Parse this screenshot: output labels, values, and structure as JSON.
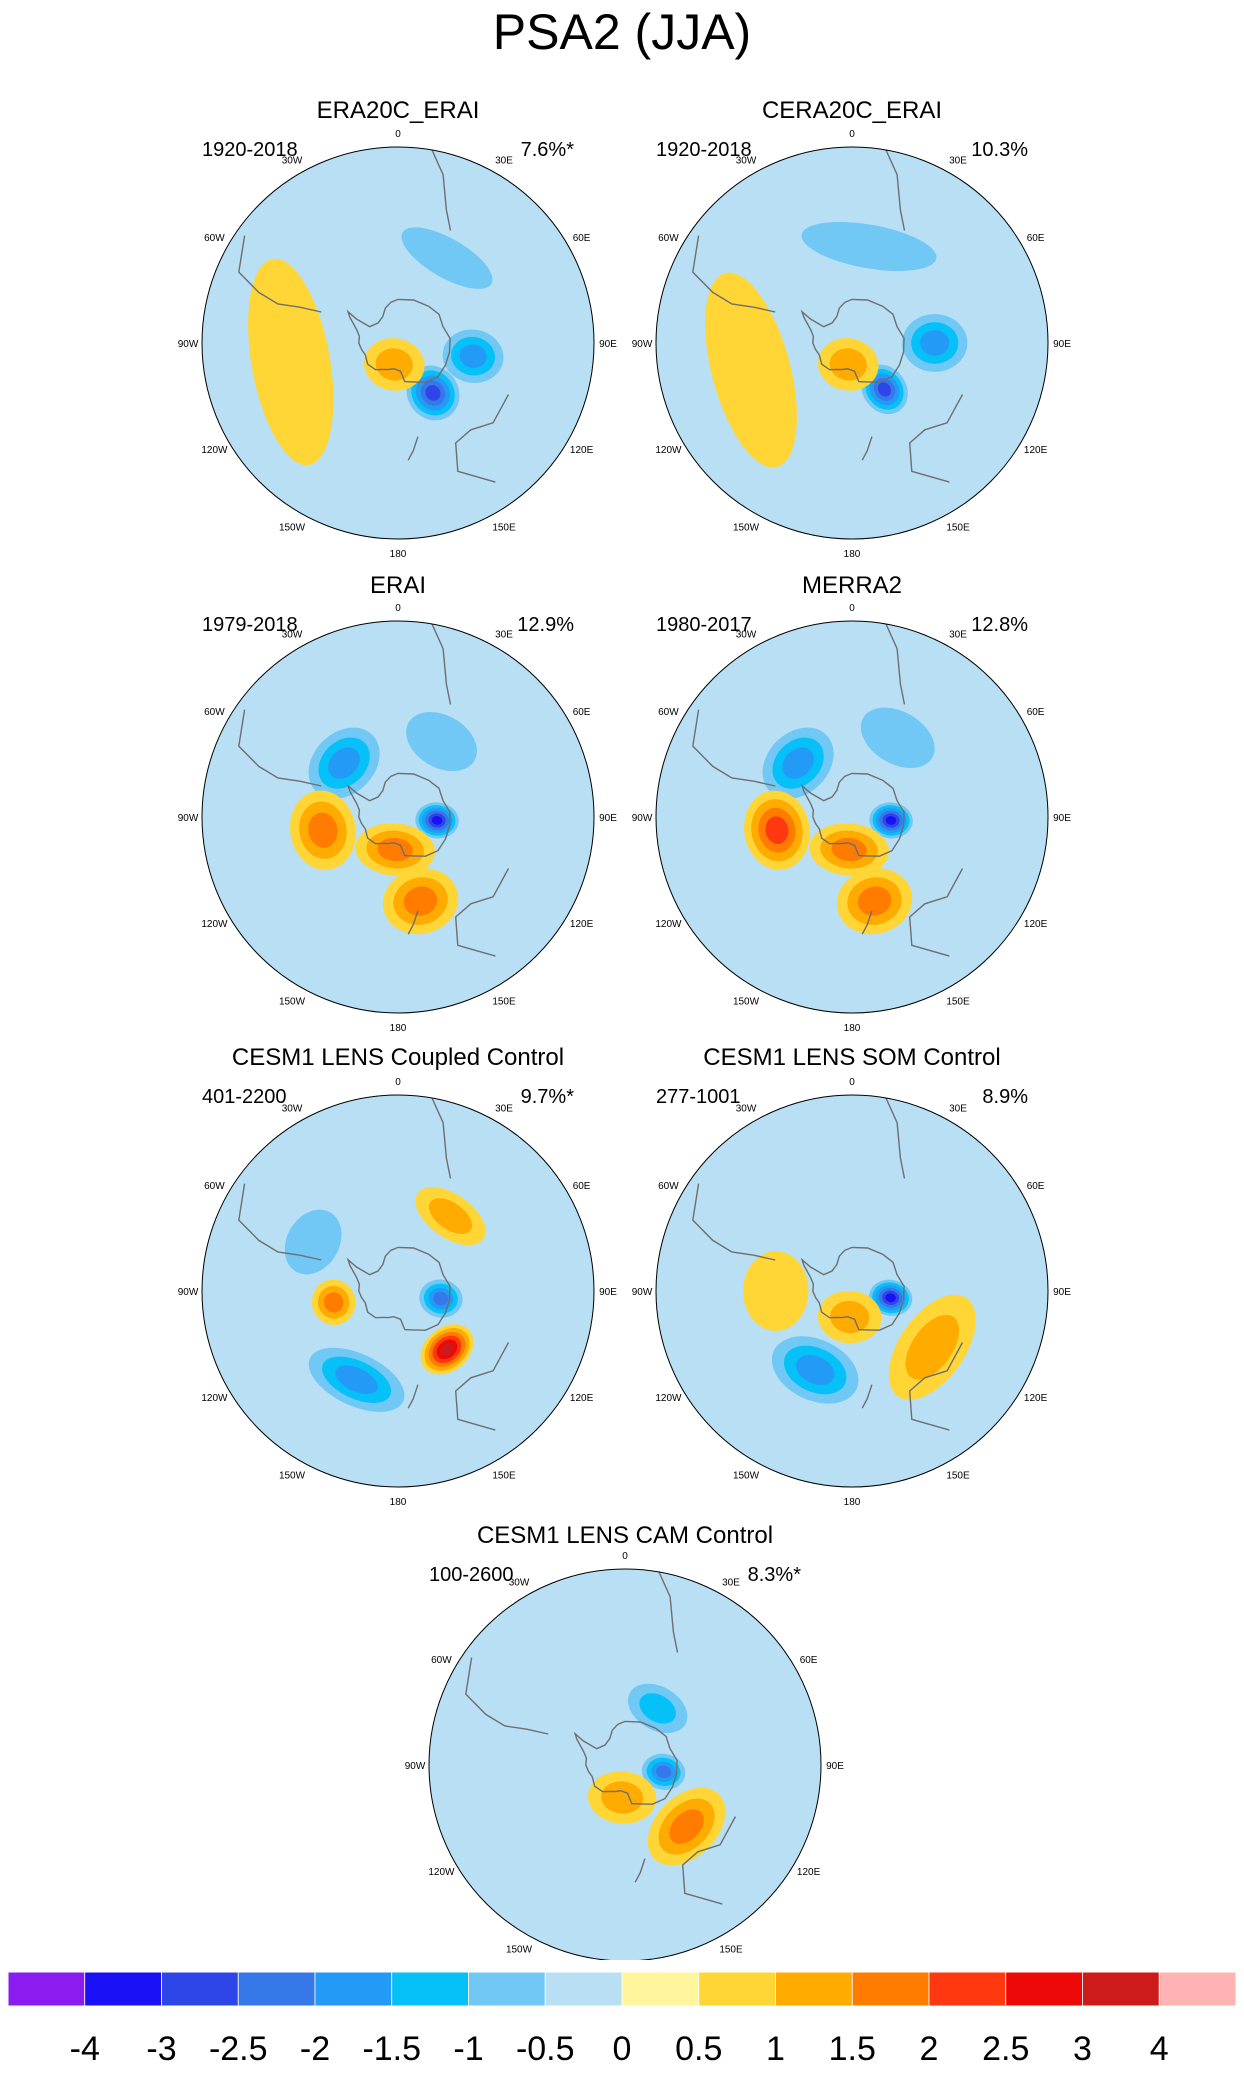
{
  "figure": {
    "title": "PSA2 (JJA)"
  },
  "longitude_labels": [
    "0",
    "30E",
    "60E",
    "90E",
    "120E",
    "150E",
    "180",
    "150W",
    "120W",
    "90W",
    "60W",
    "30W"
  ],
  "colors": {
    "scale": [
      "#8a1cf0",
      "#1a10f5",
      "#2e46e8",
      "#3677e9",
      "#239bf6",
      "#05c1f7",
      "#72c8f4",
      "#b8dff4",
      "#fff59c",
      "#ffd635",
      "#ffab00",
      "#ff7c00",
      "#ff3810",
      "#ee0909",
      "#cd1a1a",
      "#ffb3b3"
    ],
    "coast": "#6e6e6e"
  },
  "chart_data": [
    {
      "type": "heatmap",
      "title": "ERA20C_ERAI",
      "period": "1920-2018",
      "variance": "7.6%*",
      "anomalies": [
        {
          "lon": 145,
          "lat": -62,
          "value": -2.5,
          "extent_lon": 24,
          "extent_lat": 13
        },
        {
          "lon": 100,
          "lat": -55,
          "value": -1.5,
          "extent_lon": 20,
          "extent_lat": 14
        },
        {
          "lon": 30,
          "lat": -45,
          "value": -0.5,
          "extent_lon": 30,
          "extent_lat": 9
        },
        {
          "lon": -170,
          "lat": -80,
          "value": 1.0,
          "extent_lon": 80,
          "extent_lat": 12
        },
        {
          "lon": -100,
          "lat": -40,
          "value": 0.5,
          "extent_lon": 55,
          "extent_lat": 18
        }
      ]
    },
    {
      "type": "heatmap",
      "title": "CERA20C_ERAI",
      "period": "1920-2018",
      "variance": "10.3%",
      "anomalies": [
        {
          "lon": 145,
          "lat": -64,
          "value": -2.5,
          "extent_lon": 22,
          "extent_lat": 12
        },
        {
          "lon": 90,
          "lat": -52,
          "value": -1.5,
          "extent_lon": 20,
          "extent_lat": 15
        },
        {
          "lon": 10,
          "lat": -45,
          "value": -0.5,
          "extent_lon": 40,
          "extent_lat": 10
        },
        {
          "lon": -170,
          "lat": -80,
          "value": 1.0,
          "extent_lon": 80,
          "extent_lat": 12
        },
        {
          "lon": -105,
          "lat": -42,
          "value": 0.5,
          "extent_lon": 55,
          "extent_lat": 18
        }
      ]
    },
    {
      "type": "heatmap",
      "title": "ERAI",
      "period": "1979-2018",
      "variance": "12.9%",
      "anomalies": [
        {
          "lon": 95,
          "lat": -72,
          "value": -3.0,
          "extent_lon": 26,
          "extent_lat": 10
        },
        {
          "lon": 30,
          "lat": -50,
          "value": -0.5,
          "extent_lon": 25,
          "extent_lat": 12
        },
        {
          "lon": -45,
          "lat": -55,
          "value": -1.5,
          "extent_lon": 30,
          "extent_lat": 14
        },
        {
          "lon": -100,
          "lat": -55,
          "value": 1.5,
          "extent_lon": 30,
          "extent_lat": 15
        },
        {
          "lon": -175,
          "lat": -75,
          "value": 1.5,
          "extent_lon": 70,
          "extent_lat": 12
        },
        {
          "lon": 165,
          "lat": -50,
          "value": 1.5,
          "extent_lon": 25,
          "extent_lat": 15
        }
      ]
    },
    {
      "type": "heatmap",
      "title": "MERRA2",
      "period": "1980-2017",
      "variance": "12.8%",
      "anomalies": [
        {
          "lon": 95,
          "lat": -72,
          "value": -3.0,
          "extent_lon": 26,
          "extent_lat": 10
        },
        {
          "lon": 30,
          "lat": -48,
          "value": -0.5,
          "extent_lon": 25,
          "extent_lat": 12
        },
        {
          "lon": -45,
          "lat": -55,
          "value": -1.5,
          "extent_lon": 30,
          "extent_lat": 14
        },
        {
          "lon": -100,
          "lat": -55,
          "value": 2.0,
          "extent_lon": 30,
          "extent_lat": 15
        },
        {
          "lon": -175,
          "lat": -75,
          "value": 1.5,
          "extent_lon": 70,
          "extent_lat": 12
        },
        {
          "lon": 165,
          "lat": -50,
          "value": 1.5,
          "extent_lon": 25,
          "extent_lat": 15
        }
      ]
    },
    {
      "type": "heatmap",
      "title": "CESM1 LENS Coupled Control",
      "period": "401-2200",
      "variance": "9.7%*",
      "anomalies": [
        {
          "lon": 100,
          "lat": -70,
          "value": -2.0,
          "extent_lon": 25,
          "extent_lat": 10
        },
        {
          "lon": 140,
          "lat": -55,
          "value": 3.0,
          "extent_lon": 22,
          "extent_lat": 10
        },
        {
          "lon": -100,
          "lat": -60,
          "value": 1.5,
          "extent_lon": 20,
          "extent_lat": 10
        },
        {
          "lon": -155,
          "lat": -45,
          "value": -1.5,
          "extent_lon": 30,
          "extent_lat": 12
        },
        {
          "lon": 35,
          "lat": -48,
          "value": 1.0,
          "extent_lon": 25,
          "extent_lat": 10
        },
        {
          "lon": -60,
          "lat": -45,
          "value": -0.5,
          "extent_lon": 20,
          "extent_lat": 12
        }
      ]
    },
    {
      "type": "heatmap",
      "title": "CESM1 LENS SOM Control",
      "period": "277-1001",
      "variance": "8.9%",
      "anomalies": [
        {
          "lon": 100,
          "lat": -72,
          "value": -3.0,
          "extent_lon": 26,
          "extent_lat": 10
        },
        {
          "lon": -155,
          "lat": -50,
          "value": -1.5,
          "extent_lon": 30,
          "extent_lat": 14
        },
        {
          "lon": 125,
          "lat": -45,
          "value": 1.0,
          "extent_lon": 35,
          "extent_lat": 15
        },
        {
          "lon": -90,
          "lat": -55,
          "value": 0.5,
          "extent_lon": 30,
          "extent_lat": 15
        },
        {
          "lon": -175,
          "lat": -78,
          "value": 1.0,
          "extent_lon": 70,
          "extent_lat": 12
        }
      ]
    },
    {
      "type": "heatmap",
      "title": "CESM1 LENS CAM Control",
      "period": "100-2600",
      "variance": "8.3%*",
      "anomalies": [
        {
          "lon": 100,
          "lat": -72,
          "value": -2.0,
          "extent_lon": 22,
          "extent_lat": 10
        },
        {
          "lon": 135,
          "lat": -50,
          "value": 1.5,
          "extent_lon": 30,
          "extent_lat": 14
        },
        {
          "lon": 30,
          "lat": -60,
          "value": -1.0,
          "extent_lon": 28,
          "extent_lat": 10
        },
        {
          "lon": -175,
          "lat": -75,
          "value": 1.0,
          "extent_lon": 60,
          "extent_lat": 12
        }
      ]
    }
  ],
  "colorbar": {
    "tick_labels": [
      "-4",
      "-3",
      "-2.5",
      "-2",
      "-1.5",
      "-1",
      "-0.5",
      "0",
      "0.5",
      "1",
      "1.5",
      "2",
      "2.5",
      "3",
      "4"
    ],
    "levels": [
      -4,
      -3,
      -2.5,
      -2,
      -1.5,
      -1,
      -0.5,
      0,
      0.5,
      1,
      1.5,
      2,
      2.5,
      3,
      4
    ]
  }
}
